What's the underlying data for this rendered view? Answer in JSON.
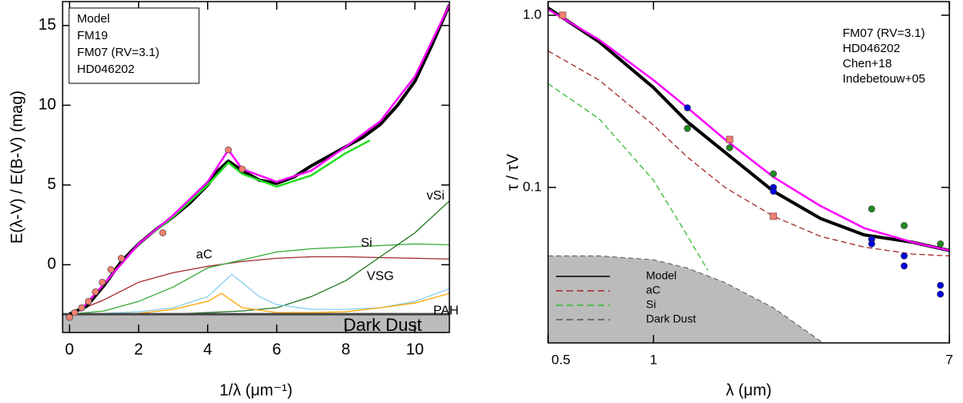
{
  "chart_data": [
    {
      "type": "line",
      "xlabel": "1/λ (μm⁻¹)",
      "ylabel": "E(λ-V) / E(B-V) (mag)",
      "xlim": [
        -0.2,
        11
      ],
      "ylim": [
        -4.25,
        16.5
      ],
      "xticks": [
        0,
        2,
        4,
        6,
        8,
        10
      ],
      "yticks": [
        0,
        5,
        10,
        15
      ],
      "series": [
        {
          "name": "Model",
          "color": "#000000",
          "x": [
            0,
            0.5,
            1,
            1.5,
            2,
            2.5,
            3,
            3.5,
            4,
            4.3,
            4.6,
            5,
            5.5,
            6,
            6.5,
            7,
            7.5,
            8,
            8.5,
            9,
            9.5,
            10,
            10.5,
            11
          ],
          "values": [
            -3.1,
            -2.6,
            -1.3,
            0.2,
            1.3,
            2.2,
            3.0,
            3.9,
            5.0,
            5.9,
            6.5,
            5.9,
            5.3,
            5.1,
            5.5,
            6.2,
            6.8,
            7.4,
            8.0,
            8.8,
            10.0,
            11.5,
            13.8,
            16.3
          ]
        },
        {
          "name": "FM19",
          "color": "#22dd22",
          "x": [
            0.3,
            1,
            2,
            3,
            4,
            4.6,
            5,
            6,
            7,
            8,
            8.7
          ],
          "values": [
            -2.9,
            -1.2,
            1.3,
            3.0,
            5.0,
            6.4,
            5.7,
            4.9,
            5.6,
            7.0,
            7.8
          ]
        },
        {
          "name": "FM07 (RV=3.1)",
          "color": "#ff00ff",
          "x": [
            0.3,
            1,
            2,
            3,
            4,
            4.6,
            5,
            6,
            7,
            8,
            9,
            10,
            11
          ],
          "values": [
            -2.9,
            -1.2,
            1.3,
            3.1,
            5.2,
            7.2,
            6.0,
            5.2,
            5.9,
            7.4,
            9.0,
            11.8,
            16.3
          ]
        },
        {
          "name": "HD046202",
          "color": "#f08070",
          "marker": "circle",
          "x": [
            0,
            0.15,
            0.35,
            0.55,
            0.75,
            0.95,
            1.2,
            1.5,
            2.7,
            4.6,
            5.0
          ],
          "values": [
            -3.3,
            -3.0,
            -2.7,
            -2.3,
            -1.7,
            -1.1,
            -0.3,
            0.4,
            2.0,
            7.2,
            6.0
          ]
        }
      ],
      "components": [
        {
          "name": "aC",
          "color": "#a52a2a",
          "x": [
            0,
            1,
            2,
            3,
            4,
            5,
            6,
            7,
            8,
            9,
            10,
            11
          ],
          "values": [
            -3.1,
            -2.2,
            -1.1,
            -0.5,
            -0.1,
            0.2,
            0.4,
            0.5,
            0.5,
            0.45,
            0.4,
            0.35
          ]
        },
        {
          "name": "Si",
          "color": "#33aa33",
          "x": [
            0,
            1,
            2,
            3,
            4,
            5,
            6,
            7,
            8,
            9,
            10,
            11
          ],
          "values": [
            -3.1,
            -2.9,
            -2.3,
            -1.4,
            -0.2,
            0.3,
            0.8,
            1.0,
            1.1,
            1.2,
            1.3,
            1.25
          ]
        },
        {
          "name": "vSi",
          "color": "#227722",
          "x": [
            0,
            1,
            2,
            3,
            4,
            5,
            6,
            7,
            8,
            9,
            10,
            11
          ],
          "values": [
            -3.1,
            -3.1,
            -3.1,
            -3.1,
            -3.0,
            -2.9,
            -2.7,
            -2.0,
            -1.0,
            0.5,
            2.0,
            4.0
          ]
        },
        {
          "name": "VSG",
          "color": "#87ceeb",
          "x": [
            0,
            1,
            2,
            3,
            4,
            4.7,
            5.5,
            6,
            7,
            8,
            9,
            10,
            11
          ],
          "values": [
            -3.1,
            -3.05,
            -2.95,
            -2.7,
            -2.0,
            -0.6,
            -2.0,
            -2.5,
            -2.8,
            -2.8,
            -2.7,
            -2.3,
            -1.5
          ]
        },
        {
          "name": "PAH",
          "color": "#ffa500",
          "x": [
            0,
            1,
            2,
            3,
            4,
            4.4,
            5,
            6,
            7,
            8,
            9,
            10,
            11
          ],
          "values": [
            -3.1,
            -3.1,
            -3.05,
            -2.8,
            -2.3,
            -1.8,
            -2.7,
            -3.0,
            -3.0,
            -2.95,
            -2.7,
            -2.4,
            -1.8
          ]
        },
        {
          "name": "Dark Dust",
          "color": "#bbbbbb",
          "fill": true,
          "x": [
            -0.2,
            11
          ],
          "values": [
            -3.1,
            -3.1
          ]
        }
      ]
    },
    {
      "type": "line",
      "xlog": true,
      "ylog": true,
      "xlabel": "λ (μm)",
      "ylabel": "τ / τV",
      "xlim": [
        0.5,
        7
      ],
      "ylim": [
        0.0125,
        1.2
      ],
      "xticks": [
        0.5,
        1,
        7
      ],
      "yticks": [
        {
          "value": 1,
          "label": "1.0"
        },
        0.1
      ],
      "series": [
        {
          "name": "FM07 (RV=3.1)",
          "color": "#ff00ff",
          "x": [
            0.5,
            0.7,
            1,
            1.25,
            1.6,
            2.2,
            3,
            4,
            5.5,
            7
          ],
          "values": [
            1.08,
            0.72,
            0.42,
            0.29,
            0.19,
            0.115,
            0.078,
            0.058,
            0.048,
            0.043
          ]
        },
        {
          "name": "HD046202",
          "color": "#f08070",
          "marker": "square",
          "x": [
            0.55,
            1.65,
            2.2
          ],
          "values": [
            1.0,
            0.19,
            0.068
          ]
        },
        {
          "name": "Chen+18",
          "color": "#0000dd",
          "marker": "circle",
          "x": [
            1.25,
            2.2,
            2.2,
            4.2,
            4.2,
            5.2,
            5.2,
            6.6,
            6.6
          ],
          "values": [
            0.29,
            0.1,
            0.095,
            0.05,
            0.047,
            0.04,
            0.035,
            0.027,
            0.024
          ]
        },
        {
          "name": "Indebetouw+05",
          "color": "#228b22",
          "marker": "circle",
          "x": [
            1.25,
            1.65,
            2.2,
            4.2,
            5.2,
            6.6
          ],
          "values": [
            0.22,
            0.17,
            0.12,
            0.075,
            0.06,
            0.047
          ]
        }
      ],
      "components": [
        {
          "name": "Model",
          "color": "#000000",
          "x": [
            0.5,
            0.7,
            1,
            1.25,
            1.6,
            2.2,
            3,
            4,
            5.5,
            7
          ],
          "values": [
            1.1,
            0.7,
            0.38,
            0.24,
            0.16,
            0.095,
            0.066,
            0.053,
            0.048,
            0.043
          ]
        },
        {
          "name": "aC",
          "color": "#a52a2a",
          "dash": true,
          "x": [
            0.5,
            0.7,
            1,
            1.25,
            1.6,
            2.2,
            3,
            4,
            5.5,
            7
          ],
          "values": [
            0.62,
            0.42,
            0.23,
            0.15,
            0.1,
            0.068,
            0.052,
            0.045,
            0.041,
            0.04
          ]
        },
        {
          "name": "Si",
          "color": "#33bb33",
          "dash": true,
          "x": [
            0.5,
            0.7,
            1,
            1.2,
            1.43
          ],
          "values": [
            0.4,
            0.25,
            0.11,
            0.06,
            0.033
          ]
        },
        {
          "name": "Dark Dust",
          "color": "#bbbbbb",
          "fill": true,
          "dash": true,
          "x": [
            0.5,
            0.7,
            1,
            1.25,
            1.6,
            2.2,
            3.05
          ],
          "values": [
            0.04,
            0.04,
            0.038,
            0.034,
            0.028,
            0.02,
            0.0125
          ]
        }
      ]
    }
  ]
}
